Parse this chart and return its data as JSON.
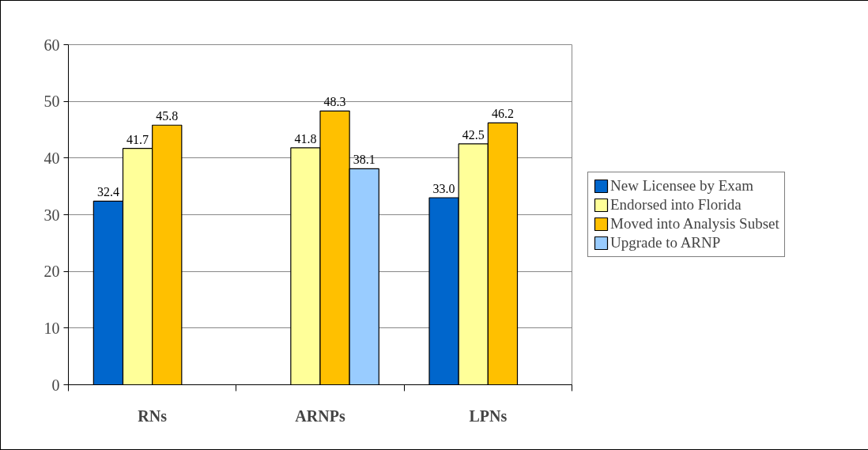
{
  "chart_data": {
    "type": "bar",
    "categories": [
      "RNs",
      "ARNPs",
      "LPNs"
    ],
    "series": [
      {
        "name": "New Licensee by Exam",
        "color": "#0066cc",
        "values": [
          32.4,
          null,
          33.0
        ],
        "value_labels": [
          "32.4",
          null,
          "33.0"
        ]
      },
      {
        "name": "Endorsed into Florida",
        "color": "#ffff99",
        "values": [
          41.7,
          41.8,
          42.5
        ]
      },
      {
        "name": "Moved into Analysis Subset",
        "color": "#ffc000",
        "values": [
          45.8,
          48.3,
          46.2
        ]
      },
      {
        "name": "Upgrade to ARNP",
        "color": "#99ccff",
        "values": [
          null,
          38.1,
          null
        ]
      }
    ],
    "ylim": [
      0,
      60
    ],
    "yticks": [
      0,
      10,
      20,
      30,
      40,
      50,
      60
    ],
    "grid": "y",
    "legend": "right",
    "data_labels": true
  }
}
